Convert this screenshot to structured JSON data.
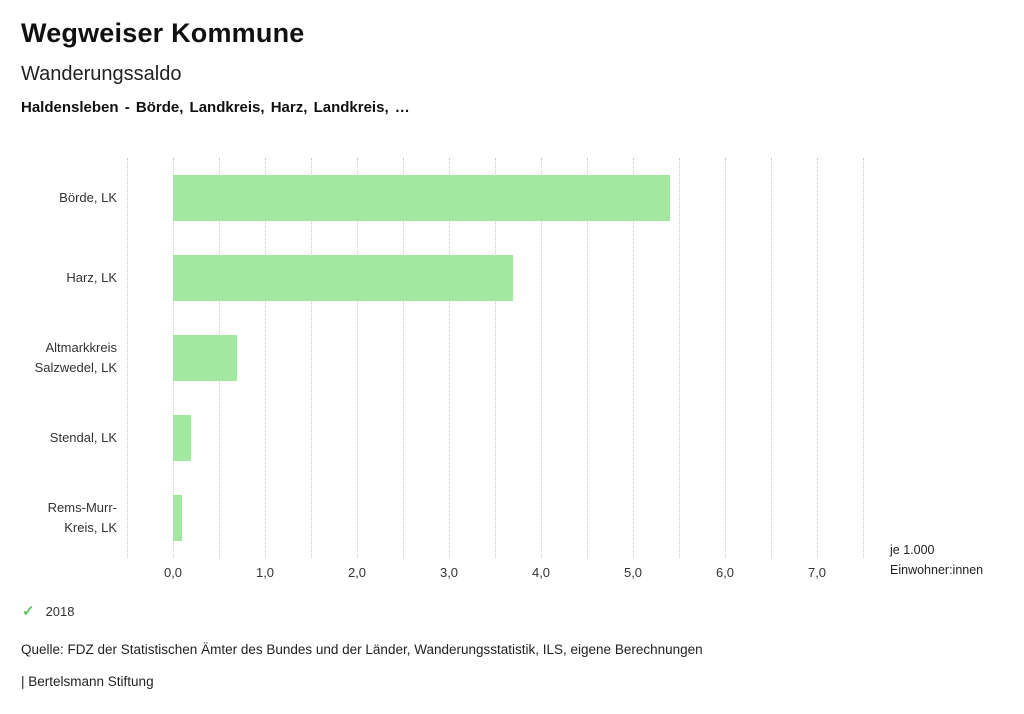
{
  "header": {
    "brand": "Wegweiser Kommune",
    "title": "Wanderungssaldo",
    "subtitle": "Haldensleben - Börde, Landkreis, Harz, Landkreis, …"
  },
  "chart_data": {
    "type": "bar",
    "orientation": "horizontal",
    "title": "Wanderungssaldo",
    "categories": [
      "Börde, LK",
      "Harz, LK",
      "Altmarkkreis\nSalzwedel, LK",
      "Stendal, LK",
      "Rems-Murr-\nKreis, LK"
    ],
    "values": [
      5.4,
      3.7,
      0.7,
      0.2,
      0.1
    ],
    "xlim": [
      -0.5,
      7.5
    ],
    "grid_step": 0.5,
    "grid": true,
    "ticks": [
      {
        "label": "0,0",
        "value": 0
      },
      {
        "label": "1,0",
        "value": 1
      },
      {
        "label": "2,0",
        "value": 2
      },
      {
        "label": "3,0",
        "value": 3
      },
      {
        "label": "4,0",
        "value": 4
      },
      {
        "label": "5,0",
        "value": 5
      },
      {
        "label": "6,0",
        "value": 6
      },
      {
        "label": "7,0",
        "value": 7
      }
    ],
    "unit_note": "je 1.000\nEinwohner:innen",
    "bar_color": "#a3e8a0"
  },
  "legend": {
    "year": "2018",
    "check_icon": "✓",
    "check_color": "#62c262"
  },
  "source": "Quelle: FDZ der Statistischen Ämter des Bundes und der Länder, Wanderungsstatistik, ILS, eigene Berechnungen",
  "footer": "| Bertelsmann Stiftung"
}
